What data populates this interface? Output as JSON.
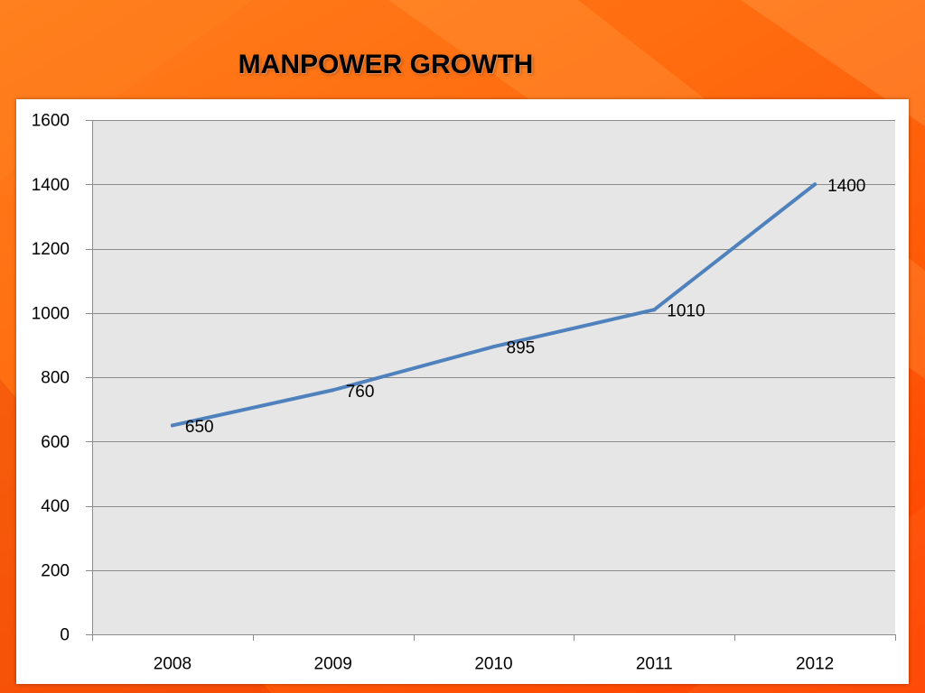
{
  "chart_data": {
    "type": "line",
    "title": "MANPOWER GROWTH",
    "categories": [
      "2008",
      "2009",
      "2010",
      "2011",
      "2012"
    ],
    "series": [
      {
        "values": [
          650,
          760,
          895,
          1010,
          1400
        ]
      }
    ],
    "ylim": [
      0,
      1600
    ],
    "yticks": [
      0,
      200,
      400,
      600,
      800,
      1000,
      1200,
      1400,
      1600
    ],
    "grid": true,
    "legend": "none",
    "data_labels": true,
    "colors": {
      "line": "#4f81bd",
      "plot_bg": "#e6e6e6",
      "panel_bg": "#ffffff",
      "gridline": "#8c8c8c",
      "axis": "#8c8c8c",
      "slide_bg": "#ff6a10"
    }
  }
}
